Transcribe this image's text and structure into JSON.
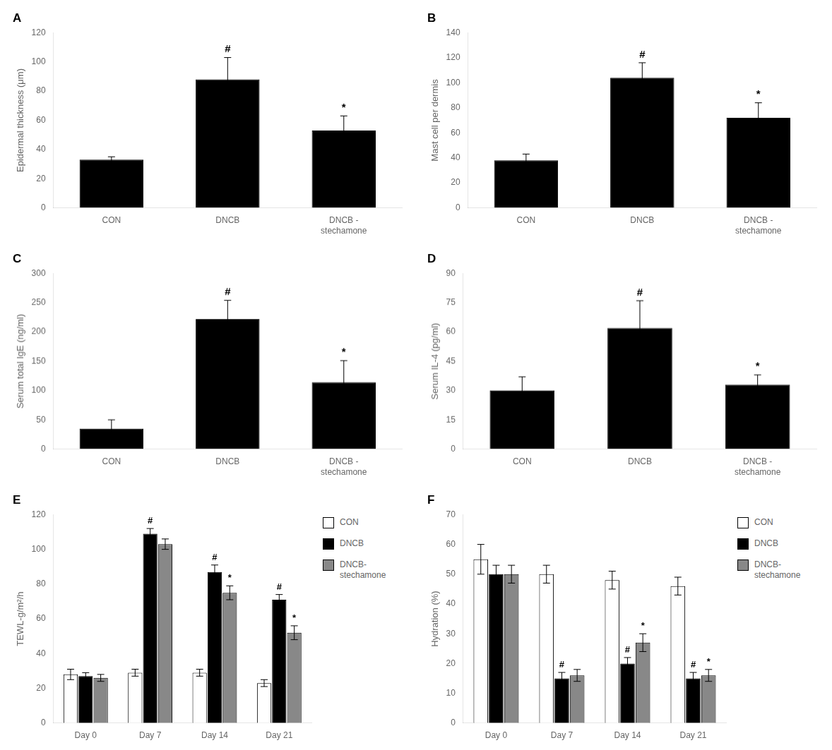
{
  "chart_data": [
    {
      "type": "bar",
      "title": "A",
      "ylabel": "Epidermal thickness (μm)",
      "categories": [
        "CON",
        "DNCB",
        "DNCB -\nstechamone"
      ],
      "values": [
        33,
        88,
        53
      ],
      "errors": [
        2,
        15,
        10
      ],
      "annotations": [
        null,
        "#",
        "*"
      ],
      "color": "#000000",
      "ylim": [
        0,
        120
      ],
      "yticks": [
        0,
        20,
        40,
        60,
        80,
        100,
        120
      ],
      "grid": false
    },
    {
      "type": "bar",
      "title": "B",
      "ylabel": "Mast cell per dermis",
      "categories": [
        "CON",
        "DNCB",
        "DNCB -\nstechamone"
      ],
      "values": [
        38,
        104,
        72
      ],
      "errors": [
        5,
        12,
        12
      ],
      "annotations": [
        null,
        "#",
        "*"
      ],
      "color": "#000000",
      "ylim": [
        0,
        140
      ],
      "yticks": [
        0,
        20,
        40,
        60,
        80,
        100,
        120,
        140
      ],
      "grid": false
    },
    {
      "type": "bar",
      "title": "C",
      "ylabel": "Serum total IgE (ng/ml)",
      "categories": [
        "CON",
        "DNCB",
        "DNCB -\nstechamone"
      ],
      "values": [
        35,
        222,
        114
      ],
      "errors": [
        15,
        32,
        37
      ],
      "annotations": [
        null,
        "#",
        "*"
      ],
      "color": "#000000",
      "ylim": [
        0,
        300
      ],
      "yticks": [
        0,
        50,
        100,
        150,
        200,
        250,
        300
      ],
      "grid": false
    },
    {
      "type": "bar",
      "title": "D",
      "ylabel": "Serum IL-4 (pg/ml)",
      "categories": [
        "CON",
        "DNCB",
        "DNCB -\nstechamone"
      ],
      "values": [
        30,
        62,
        33
      ],
      "errors": [
        7,
        14,
        5
      ],
      "annotations": [
        null,
        "#",
        "*"
      ],
      "color": "#000000",
      "ylim": [
        0,
        90
      ],
      "yticks": [
        0,
        15,
        30,
        45,
        60,
        75,
        90
      ],
      "grid": false
    },
    {
      "type": "bar",
      "title": "E",
      "ylabel": "TEWL-g/m²/h",
      "categories": [
        "Day 0",
        "Day 7",
        "Day 14",
        "Day 21"
      ],
      "series": [
        {
          "name": "CON",
          "color": "#ffffff",
          "values": [
            28,
            29,
            29,
            23
          ],
          "errors": [
            3,
            2,
            2,
            2
          ]
        },
        {
          "name": "DNCB",
          "color": "#000000",
          "values": [
            27,
            109,
            87,
            71
          ],
          "errors": [
            2,
            3,
            4,
            3
          ],
          "annotations": [
            null,
            "#",
            "#",
            "#"
          ]
        },
        {
          "name": "DNCB-\nstechamone",
          "color": "#888888",
          "values": [
            26,
            103,
            75,
            52
          ],
          "errors": [
            2,
            3,
            4,
            4
          ],
          "annotations": [
            null,
            null,
            "*",
            "*"
          ]
        }
      ],
      "ylim": [
        0,
        120
      ],
      "yticks": [
        0,
        20,
        40,
        60,
        80,
        100,
        120
      ],
      "grid": false,
      "legend": "right"
    },
    {
      "type": "bar",
      "title": "F",
      "ylabel": "Hydration (%)",
      "categories": [
        "Day 0",
        "Day 7",
        "Day 14",
        "Day 21"
      ],
      "series": [
        {
          "name": "CON",
          "color": "#ffffff",
          "values": [
            55,
            50,
            48,
            46
          ],
          "errors": [
            5,
            3,
            3,
            3
          ]
        },
        {
          "name": "DNCB",
          "color": "#000000",
          "values": [
            50,
            15,
            20,
            15
          ],
          "errors": [
            3,
            2,
            2,
            2
          ],
          "annotations": [
            null,
            "#",
            "#",
            "#"
          ]
        },
        {
          "name": "DNCB-\nstechamone",
          "color": "#888888",
          "values": [
            50,
            16,
            27,
            16
          ],
          "errors": [
            3,
            2,
            3,
            2
          ],
          "annotations": [
            null,
            null,
            "*",
            "*"
          ]
        }
      ],
      "ylim": [
        0,
        70
      ],
      "yticks": [
        0,
        10,
        20,
        30,
        40,
        50,
        60,
        70
      ],
      "grid": false,
      "legend": "right"
    }
  ]
}
